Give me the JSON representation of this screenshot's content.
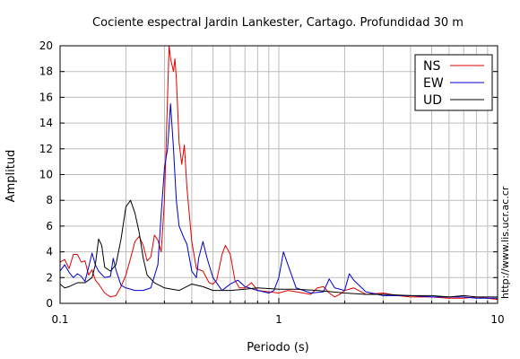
{
  "chart_data": {
    "type": "line",
    "title": "Cociente espectral Jardin Lankester, Cartago. Profundidad 30 m",
    "xlabel": "Periodo (s)",
    "ylabel": "Amplitud",
    "xscale": "log",
    "xlim": [
      0.1,
      10
    ],
    "ylim": [
      0,
      20
    ],
    "grid": true,
    "legend_position": "top-right",
    "x_tick_labels": [
      {
        "value": 0.1,
        "label": "0.1"
      },
      {
        "value": 1,
        "label": "1"
      },
      {
        "value": 10,
        "label": "10"
      }
    ],
    "y_tick_labels": [
      {
        "value": 0,
        "label": "0"
      },
      {
        "value": 2,
        "label": "2"
      },
      {
        "value": 4,
        "label": "4"
      },
      {
        "value": 6,
        "label": "6"
      },
      {
        "value": 8,
        "label": "8"
      },
      {
        "value": 10,
        "label": "10"
      },
      {
        "value": 12,
        "label": "12"
      },
      {
        "value": 14,
        "label": "14"
      },
      {
        "value": 16,
        "label": "16"
      },
      {
        "value": 18,
        "label": "18"
      },
      {
        "value": 20,
        "label": "20"
      }
    ],
    "side_text": "http://www.lis.ucr.ac.cr",
    "series": [
      {
        "name": "NS",
        "color": "#e00000",
        "points": [
          [
            0.1,
            3.2
          ],
          [
            0.105,
            3.4
          ],
          [
            0.11,
            2.7
          ],
          [
            0.115,
            3.8
          ],
          [
            0.12,
            3.8
          ],
          [
            0.125,
            3.2
          ],
          [
            0.13,
            3.3
          ],
          [
            0.135,
            2.2
          ],
          [
            0.14,
            2.6
          ],
          [
            0.145,
            1.8
          ],
          [
            0.15,
            1.5
          ],
          [
            0.16,
            0.8
          ],
          [
            0.17,
            0.5
          ],
          [
            0.18,
            0.6
          ],
          [
            0.19,
            1.3
          ],
          [
            0.2,
            2.2
          ],
          [
            0.21,
            3.5
          ],
          [
            0.22,
            4.8
          ],
          [
            0.23,
            5.2
          ],
          [
            0.24,
            4.5
          ],
          [
            0.25,
            3.3
          ],
          [
            0.26,
            3.6
          ],
          [
            0.27,
            5.3
          ],
          [
            0.28,
            4.9
          ],
          [
            0.29,
            4.0
          ],
          [
            0.3,
            8.0
          ],
          [
            0.31,
            16.0
          ],
          [
            0.315,
            20.0
          ],
          [
            0.32,
            19.0
          ],
          [
            0.33,
            18.0
          ],
          [
            0.335,
            19.0
          ],
          [
            0.34,
            17.5
          ],
          [
            0.35,
            12.5
          ],
          [
            0.36,
            10.8
          ],
          [
            0.37,
            12.3
          ],
          [
            0.38,
            9.0
          ],
          [
            0.4,
            4.8
          ],
          [
            0.42,
            2.7
          ],
          [
            0.45,
            2.5
          ],
          [
            0.48,
            1.6
          ],
          [
            0.5,
            1.5
          ],
          [
            0.52,
            1.8
          ],
          [
            0.55,
            3.8
          ],
          [
            0.57,
            4.5
          ],
          [
            0.6,
            3.8
          ],
          [
            0.63,
            1.8
          ],
          [
            0.66,
            1.2
          ],
          [
            0.7,
            1.2
          ],
          [
            0.75,
            1.6
          ],
          [
            0.8,
            1.0
          ],
          [
            0.9,
            0.9
          ],
          [
            1.0,
            0.8
          ],
          [
            1.1,
            1.0
          ],
          [
            1.2,
            0.9
          ],
          [
            1.4,
            0.7
          ],
          [
            1.5,
            1.2
          ],
          [
            1.6,
            1.3
          ],
          [
            1.7,
            0.8
          ],
          [
            1.8,
            0.5
          ],
          [
            1.9,
            0.7
          ],
          [
            2.0,
            1.0
          ],
          [
            2.2,
            1.2
          ],
          [
            2.5,
            0.7
          ],
          [
            3.0,
            0.8
          ],
          [
            3.5,
            0.6
          ],
          [
            4.0,
            0.5
          ],
          [
            5.0,
            0.5
          ],
          [
            6.0,
            0.4
          ],
          [
            7.0,
            0.4
          ],
          [
            8.0,
            0.5
          ],
          [
            9.0,
            0.4
          ],
          [
            10.0,
            0.3
          ]
        ]
      },
      {
        "name": "EW",
        "color": "#0000cc",
        "points": [
          [
            0.1,
            2.5
          ],
          [
            0.105,
            3.0
          ],
          [
            0.11,
            2.4
          ],
          [
            0.115,
            2.0
          ],
          [
            0.12,
            2.3
          ],
          [
            0.125,
            2.1
          ],
          [
            0.13,
            1.7
          ],
          [
            0.135,
            2.8
          ],
          [
            0.14,
            3.9
          ],
          [
            0.145,
            3.0
          ],
          [
            0.15,
            2.5
          ],
          [
            0.16,
            2.0
          ],
          [
            0.17,
            2.1
          ],
          [
            0.175,
            3.5
          ],
          [
            0.18,
            2.6
          ],
          [
            0.19,
            1.4
          ],
          [
            0.2,
            1.2
          ],
          [
            0.22,
            1.0
          ],
          [
            0.24,
            1.0
          ],
          [
            0.26,
            1.2
          ],
          [
            0.28,
            3.0
          ],
          [
            0.29,
            7.0
          ],
          [
            0.3,
            10.5
          ],
          [
            0.31,
            12.0
          ],
          [
            0.32,
            15.5
          ],
          [
            0.33,
            12.0
          ],
          [
            0.34,
            8.0
          ],
          [
            0.35,
            6.0
          ],
          [
            0.37,
            5.0
          ],
          [
            0.38,
            4.6
          ],
          [
            0.4,
            2.5
          ],
          [
            0.42,
            2.0
          ],
          [
            0.43,
            3.5
          ],
          [
            0.45,
            4.8
          ],
          [
            0.47,
            3.5
          ],
          [
            0.5,
            2.0
          ],
          [
            0.55,
            1.0
          ],
          [
            0.6,
            1.5
          ],
          [
            0.65,
            1.8
          ],
          [
            0.7,
            1.3
          ],
          [
            0.8,
            1.0
          ],
          [
            0.9,
            0.8
          ],
          [
            0.95,
            1.0
          ],
          [
            1.0,
            2.0
          ],
          [
            1.05,
            4.0
          ],
          [
            1.1,
            3.0
          ],
          [
            1.2,
            1.2
          ],
          [
            1.4,
            0.8
          ],
          [
            1.6,
            0.9
          ],
          [
            1.7,
            1.9
          ],
          [
            1.8,
            1.2
          ],
          [
            2.0,
            1.0
          ],
          [
            2.1,
            2.3
          ],
          [
            2.2,
            1.8
          ],
          [
            2.5,
            0.9
          ],
          [
            3.0,
            0.6
          ],
          [
            4.0,
            0.6
          ],
          [
            5.0,
            0.5
          ],
          [
            6.0,
            0.5
          ],
          [
            7.0,
            0.5
          ],
          [
            8.0,
            0.4
          ],
          [
            10.0,
            0.4
          ]
        ]
      },
      {
        "name": "UD",
        "color": "#000000",
        "points": [
          [
            0.1,
            1.5
          ],
          [
            0.105,
            1.2
          ],
          [
            0.11,
            1.3
          ],
          [
            0.12,
            1.6
          ],
          [
            0.13,
            1.6
          ],
          [
            0.14,
            2.0
          ],
          [
            0.145,
            3.0
          ],
          [
            0.15,
            5.0
          ],
          [
            0.155,
            4.5
          ],
          [
            0.16,
            2.8
          ],
          [
            0.17,
            2.5
          ],
          [
            0.18,
            3.0
          ],
          [
            0.19,
            5.0
          ],
          [
            0.2,
            7.5
          ],
          [
            0.21,
            8.0
          ],
          [
            0.22,
            7.0
          ],
          [
            0.23,
            5.5
          ],
          [
            0.24,
            3.5
          ],
          [
            0.25,
            2.2
          ],
          [
            0.27,
            1.6
          ],
          [
            0.3,
            1.2
          ],
          [
            0.35,
            1.0
          ],
          [
            0.4,
            1.5
          ],
          [
            0.45,
            1.3
          ],
          [
            0.5,
            1.0
          ],
          [
            0.6,
            1.0
          ],
          [
            0.7,
            1.1
          ],
          [
            0.8,
            1.2
          ],
          [
            1.0,
            1.1
          ],
          [
            1.2,
            1.1
          ],
          [
            1.5,
            1.0
          ],
          [
            2.0,
            0.8
          ],
          [
            2.5,
            0.7
          ],
          [
            3.0,
            0.7
          ],
          [
            4.0,
            0.6
          ],
          [
            5.0,
            0.6
          ],
          [
            6.0,
            0.5
          ],
          [
            7.0,
            0.6
          ],
          [
            8.0,
            0.5
          ],
          [
            10.0,
            0.5
          ]
        ]
      }
    ]
  }
}
